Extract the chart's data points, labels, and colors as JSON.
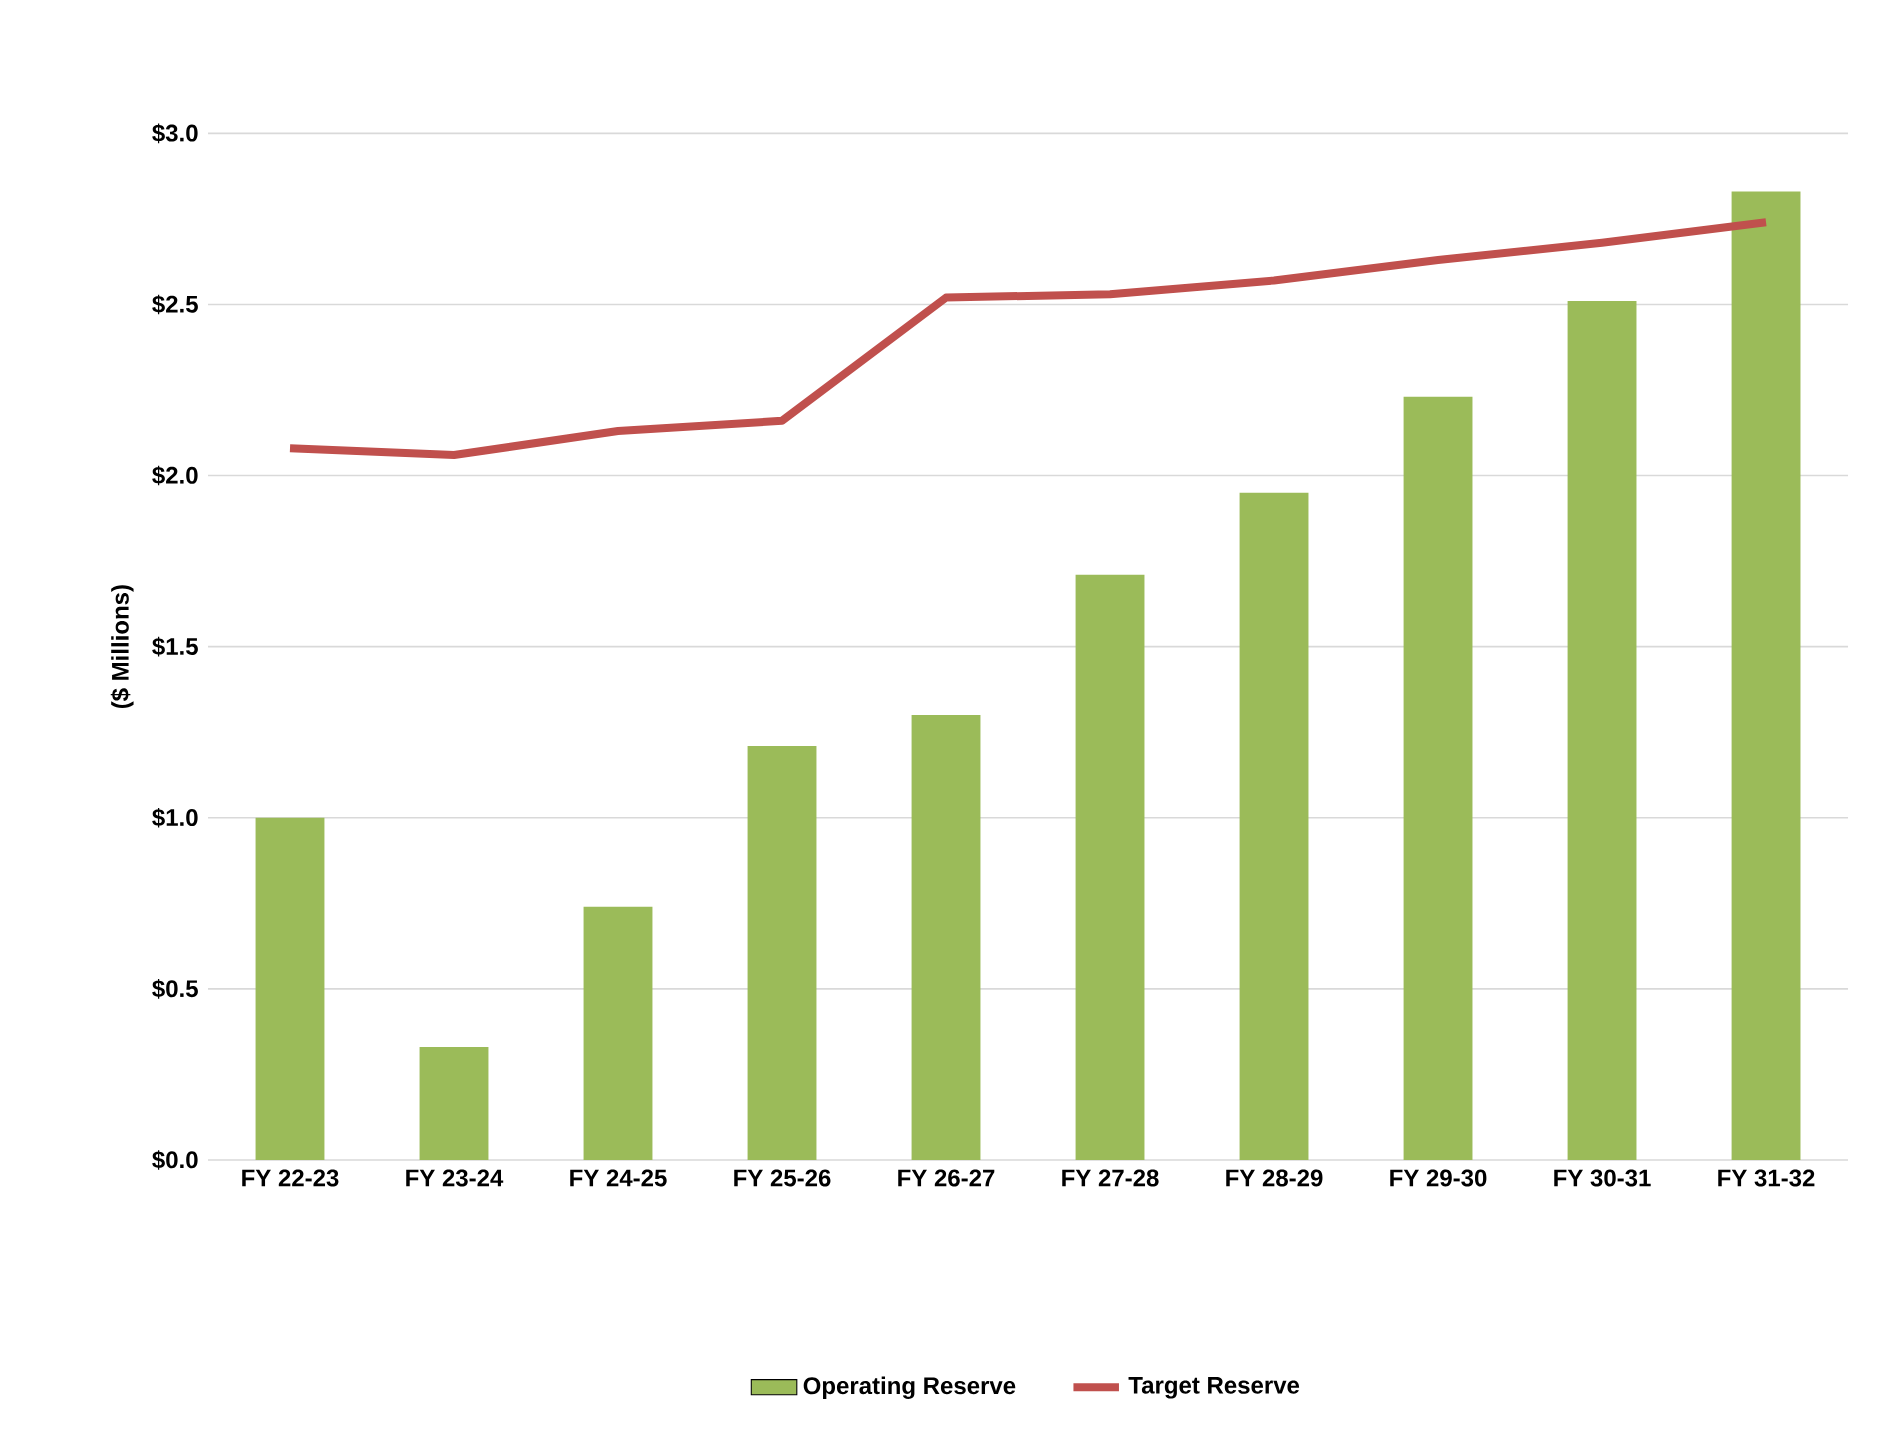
{
  "chart_data": {
    "type": "bar",
    "ylabel": "($ Millions)",
    "categories": [
      "FY 22-23",
      "FY 23-24",
      "FY 24-25",
      "FY 25-26",
      "FY 26-27",
      "FY 27-28",
      "FY 28-29",
      "FY 29-30",
      "FY 30-31",
      "FY 31-32"
    ],
    "series": [
      {
        "name": "Operating Reserve",
        "color": "#9bbb59",
        "values": [
          1.0,
          0.33,
          0.74,
          1.21,
          1.3,
          1.71,
          1.95,
          2.23,
          2.51,
          2.83
        ]
      },
      {
        "name": "Target Reserve",
        "type": "line",
        "color": "#c0504d",
        "values": [
          2.08,
          2.06,
          2.13,
          2.16,
          2.52,
          2.53,
          2.57,
          2.63,
          2.68,
          2.74
        ]
      }
    ],
    "ylim": [
      0,
      3.0
    ],
    "yticks": [
      {
        "value": 0,
        "label": "$0.0"
      },
      {
        "value": 0.5,
        "label": "$0.5"
      },
      {
        "value": 1.0,
        "label": "$1.0"
      },
      {
        "value": 1.5,
        "label": "$1.5"
      },
      {
        "value": 2.0,
        "label": "$2.0"
      },
      {
        "value": 2.5,
        "label": "$2.5"
      },
      {
        "value": 3.0,
        "label": "$3.0"
      }
    ],
    "grid": "y",
    "legend": "bottom",
    "marker": "none"
  }
}
